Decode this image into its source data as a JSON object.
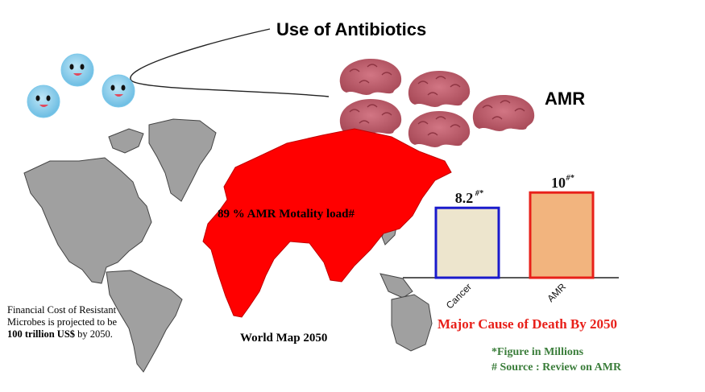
{
  "title": "Use of Antibiotics",
  "amr_label": "AMR",
  "map": {
    "mortality_label": "89 % AMR Motality load#",
    "caption": "World Map 2050"
  },
  "cost_note": {
    "line1": "Financial Cost of Resistant",
    "line2": "Microbes is projected  to be",
    "amount": "100 trillion US$",
    "line3_tail": " by 2050."
  },
  "chart_title": "Major Cause of Death  By 2050",
  "footnotes": {
    "figure": "*Figure in Millions",
    "source": "# Source : Review on AMR"
  },
  "colors": {
    "map_highlight": "#ff0000",
    "map_land": "#a0a0a0",
    "title_red": "#e8201a",
    "note_green": "#3a7d3a",
    "bacteria": "#7fc7e8",
    "resistant_microbe": "#c05a68"
  },
  "chart_data": {
    "type": "bar",
    "categories": [
      "Cancer",
      "AMR"
    ],
    "values": [
      8.2,
      10
    ],
    "value_labels": [
      "8.2",
      "10"
    ],
    "value_marks": [
      "#*",
      "#*"
    ],
    "bar_fill": [
      "#ede5cd",
      "#f2b47e"
    ],
    "bar_stroke": [
      "#1a1acc",
      "#e8201a"
    ],
    "title": "Major Cause of Death  By 2050",
    "xlabel": "",
    "ylabel": "",
    "ylim": [
      0,
      10.3
    ],
    "grid": false
  }
}
